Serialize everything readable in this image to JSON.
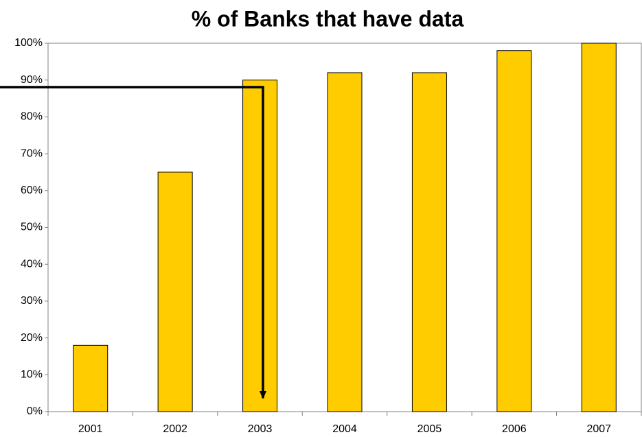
{
  "chart_data": {
    "type": "bar",
    "title": "% of Banks that have data",
    "categories": [
      "2001",
      "2002",
      "2003",
      "2004",
      "2005",
      "2006",
      "2007"
    ],
    "values": [
      18,
      65,
      90,
      92,
      92,
      98,
      100
    ],
    "color": "#ffcc00",
    "ylim": [
      0,
      100
    ],
    "yticks": [
      {
        "value": 0,
        "label": "0%"
      },
      {
        "value": 10,
        "label": "10%"
      },
      {
        "value": 20,
        "label": "20%"
      },
      {
        "value": 30,
        "label": "30%"
      },
      {
        "value": 40,
        "label": "40%"
      },
      {
        "value": 50,
        "label": "50%"
      },
      {
        "value": 60,
        "label": "60%"
      },
      {
        "value": 70,
        "label": "70%"
      },
      {
        "value": 80,
        "label": "80%"
      },
      {
        "value": 90,
        "label": "90%"
      },
      {
        "value": 100,
        "label": "100%"
      }
    ],
    "grid": false
  }
}
